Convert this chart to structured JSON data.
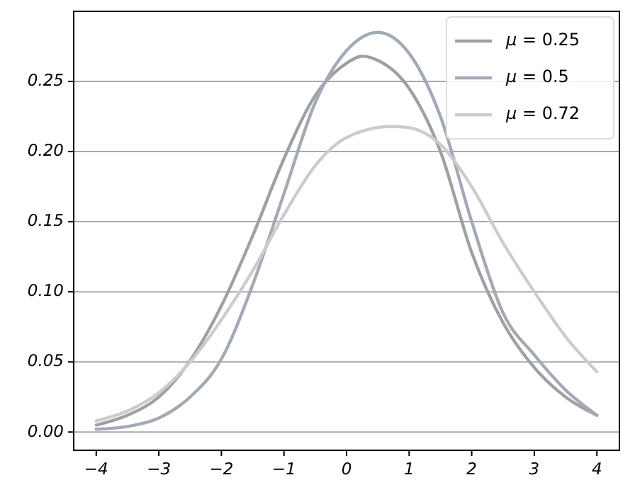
{
  "chart_data": {
    "type": "line",
    "xlim": [
      -4.36,
      4.36
    ],
    "ylim": [
      -0.013,
      0.3
    ],
    "xticks": [
      -4,
      -3,
      -2,
      -1,
      0,
      1,
      2,
      3,
      4
    ],
    "yticks": [
      {
        "value": 0,
        "label": "0.00"
      },
      {
        "value": 0.05,
        "label": "0.05"
      },
      {
        "value": 0.1,
        "label": "0.10"
      },
      {
        "value": 0.15,
        "label": "0.15"
      },
      {
        "value": 0.2,
        "label": "0.20"
      },
      {
        "value": 0.25,
        "label": "0.25"
      }
    ],
    "grid": "y",
    "legend": "top right",
    "marker": "none",
    "line_style": "solid",
    "series": [
      {
        "name": "μ = 0.25",
        "color": "#a0a0a0",
        "x": [
          -4,
          -3.5,
          -3,
          -2.5,
          -2,
          -1.5,
          -1,
          -0.5,
          0,
          0.25,
          0.5,
          1,
          1.5,
          2,
          2.5,
          3,
          3.5,
          4
        ],
        "values": [
          0.005,
          0.012,
          0.025,
          0.051,
          0.09,
          0.14,
          0.195,
          0.24,
          0.263,
          0.268,
          0.265,
          0.245,
          0.2,
          0.128,
          0.078,
          0.046,
          0.025,
          0.012
        ]
      },
      {
        "name": "μ = 0.5",
        "color": "#a2aab5",
        "x": [
          -4,
          -3.5,
          -3,
          -2.5,
          -2,
          -1.5,
          -1,
          -0.5,
          0,
          0.5,
          1,
          1.5,
          2,
          2.5,
          3,
          3.5,
          4
        ],
        "values": [
          0.002,
          0.004,
          0.01,
          0.025,
          0.052,
          0.105,
          0.17,
          0.235,
          0.272,
          0.285,
          0.27,
          0.225,
          0.15,
          0.085,
          0.055,
          0.03,
          0.012
        ]
      },
      {
        "name": "μ = 0.72",
        "color": "#cccccc",
        "x": [
          -4,
          -3.5,
          -3,
          -2.5,
          -2,
          -1.5,
          -1,
          -0.5,
          0,
          0.72,
          1,
          1.5,
          2,
          2.5,
          3,
          3.5,
          4
        ],
        "values": [
          0.008,
          0.015,
          0.028,
          0.05,
          0.08,
          0.115,
          0.155,
          0.19,
          0.21,
          0.218,
          0.217,
          0.205,
          0.175,
          0.135,
          0.1,
          0.068,
          0.043
        ]
      }
    ]
  }
}
